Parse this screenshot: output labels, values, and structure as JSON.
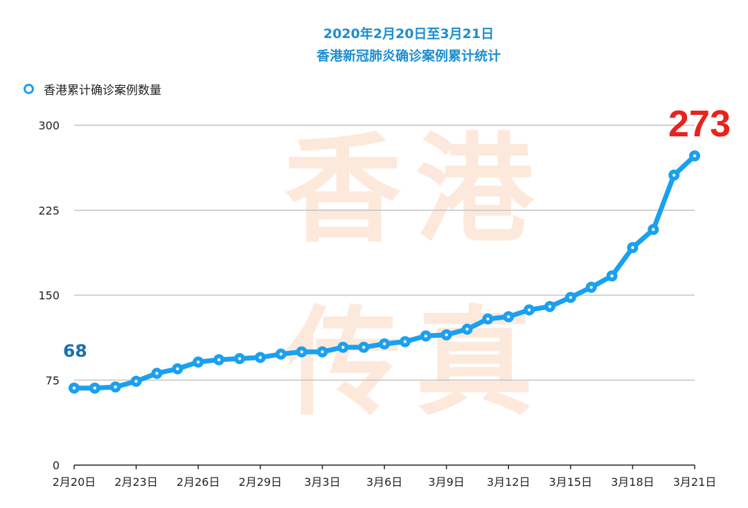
{
  "chart_data": {
    "type": "line",
    "title": "2020年2月20日至3月21日",
    "subtitle": "香港新冠肺炎确诊案例累计统计",
    "legend": {
      "position": "top-left",
      "entries": [
        "香港累计确诊案例数量"
      ]
    },
    "series": [
      {
        "name": "香港累计确诊案例数量",
        "color": "#1aa0f0",
        "values": [
          68,
          68,
          69,
          74,
          81,
          85,
          91,
          93,
          94,
          95,
          98,
          100,
          100,
          104,
          104,
          107,
          109,
          114,
          115,
          120,
          129,
          131,
          137,
          140,
          148,
          157,
          167,
          192,
          208,
          256,
          273
        ]
      }
    ],
    "x": [
      "2月20日",
      "2月21日",
      "2月22日",
      "2月23日",
      "2月24日",
      "2月25日",
      "2月26日",
      "2月27日",
      "2月28日",
      "2月29日",
      "3月1日",
      "3月2日",
      "3月3日",
      "3月4日",
      "3月5日",
      "3月6日",
      "3月7日",
      "3月8日",
      "3月9日",
      "3月10日",
      "3月11日",
      "3月12日",
      "3月13日",
      "3月14日",
      "3月15日",
      "3月16日",
      "3月17日",
      "3月18日",
      "3月19日",
      "3月20日",
      "3月21日"
    ],
    "x_tick_labels": [
      "2月20日",
      "2月23日",
      "2月26日",
      "2月29日",
      "3月3日",
      "3月6日",
      "3月9日",
      "3月12日",
      "3月15日",
      "3月18日",
      "3月21日"
    ],
    "y_ticks": [
      0,
      75,
      150,
      225,
      300
    ],
    "ylim": [
      0,
      300
    ],
    "grid": true,
    "annotations": [
      {
        "text": "68",
        "color": "#1a6fae"
      },
      {
        "text": "273",
        "color": "#e8231b"
      }
    ],
    "watermark": "香港 传真"
  }
}
